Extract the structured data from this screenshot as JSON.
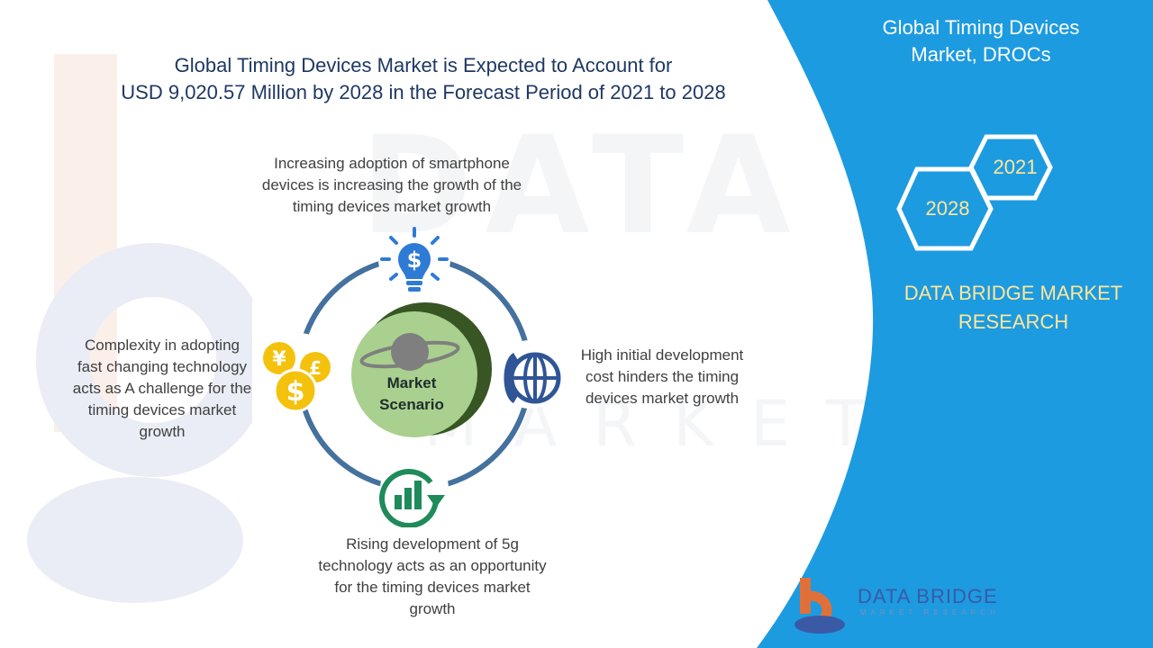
{
  "headline": {
    "line1": "Global Timing Devices Market is Expected to Account for",
    "line2": "USD 9,020.57 Million by 2028 in the Forecast Period of 2021 to 2028"
  },
  "sidebar": {
    "title_line1": "Global Timing Devices",
    "title_line2": "Market, DROCs",
    "years": [
      "2021",
      "2028"
    ],
    "brand_line1": "DATA BRIDGE MARKET",
    "brand_line2": "RESEARCH"
  },
  "diagram": {
    "center_line1": "Market",
    "center_line2": "Scenario",
    "top": [
      "Increasing adoption of smartphone",
      "devices is increasing the growth of the",
      "timing devices market growth"
    ],
    "right": [
      "High initial development",
      "cost hinders the timing",
      "devices market growth"
    ],
    "bottom": [
      "Rising development of 5g",
      "technology acts as an opportunity",
      "for the timing devices market",
      "growth"
    ],
    "left": [
      "Complexity in adopting",
      "fast changing technology",
      "acts as A challenge for the",
      "timing devices market",
      "growth"
    ]
  },
  "footer_logo": {
    "name": "DATA BRIDGE",
    "tagline": "MARKET RESEARCH"
  },
  "colors": {
    "panel_blue": "#1d9be0",
    "ring_blue": "#44719e",
    "accent_yellow": "#ffe699",
    "title_navy": "#1f3864",
    "center_green": "#a9d08e",
    "center_dark_green": "#375623"
  }
}
